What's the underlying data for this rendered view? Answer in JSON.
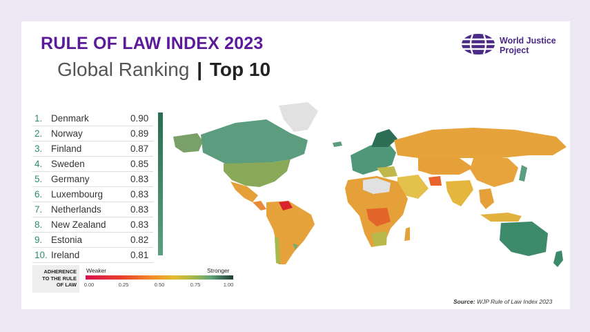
{
  "header": {
    "title": "RULE OF LAW INDEX 2023",
    "subtitle_main": "Global Ranking",
    "subtitle_separator": "|",
    "subtitle_strong": "Top 10"
  },
  "logo": {
    "line1": "World Justice",
    "line2": "Project",
    "color": "#4b2a86"
  },
  "ranking": [
    {
      "rank": "1.",
      "country": "Denmark",
      "score": "0.90"
    },
    {
      "rank": "2.",
      "country": "Norway",
      "score": "0.89"
    },
    {
      "rank": "3.",
      "country": "Finland",
      "score": "0.87"
    },
    {
      "rank": "4.",
      "country": "Sweden",
      "score": "0.85"
    },
    {
      "rank": "5.",
      "country": "Germany",
      "score": "0.83"
    },
    {
      "rank": "6.",
      "country": "Luxembourg",
      "score": "0.83"
    },
    {
      "rank": "7.",
      "country": "Netherlands",
      "score": "0.83"
    },
    {
      "rank": "8.",
      "country": "New Zealand",
      "score": "0.83"
    },
    {
      "rank": "9.",
      "country": "Estonia",
      "score": "0.82"
    },
    {
      "rank": "10.",
      "country": "Ireland",
      "score": "0.81"
    }
  ],
  "legend": {
    "label_line1": "ADHERENCE",
    "label_line2": "TO THE RULE",
    "label_line3": "OF LAW",
    "weaker": "Weaker",
    "stronger": "Stronger",
    "ticks": [
      "0.00",
      "0.25",
      "0.50",
      "0.75",
      "1.00"
    ]
  },
  "source": {
    "label": "Source:",
    "text": "WJP Rule of Law Index 2023"
  },
  "colors": {
    "title": "#5a1a9a",
    "rank_number": "#2f8a6b",
    "strong": "#3d8a6a",
    "medium": "#e2a33a",
    "weak": "#e4652b",
    "no_data": "#e1e1e1"
  }
}
